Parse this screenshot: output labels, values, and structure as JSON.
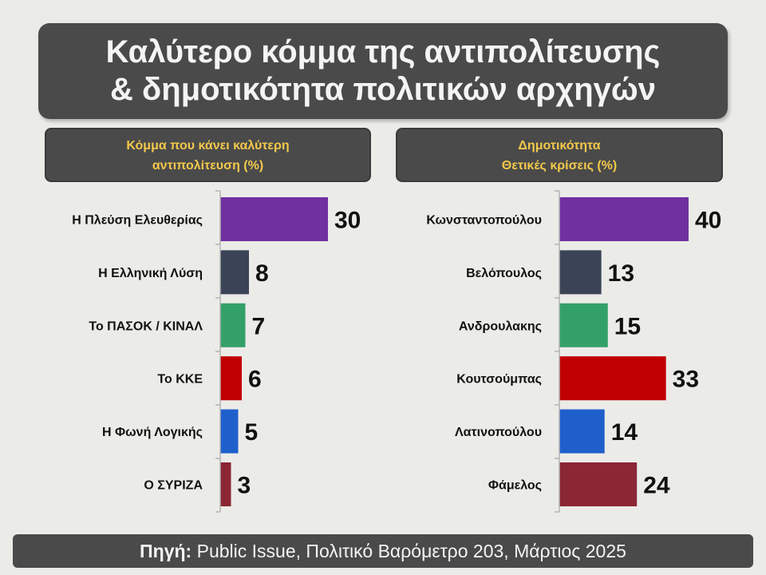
{
  "title": {
    "line1": "Καλύτερο κόμμα της αντιπολίτευσης",
    "line2": "& δημοτικότητα πολιτικών αρχηγών"
  },
  "left_panel": {
    "header_line1": "Κόμμα που κάνει καλύτερη",
    "header_line2": "αντιπολίτευση (%)"
  },
  "right_panel": {
    "header_line1": "Δημοτικότητα",
    "header_line2": "Θετικές κρίσεις (%)"
  },
  "footer": {
    "label": "Πηγή:",
    "text": " Public Issue, Πολιτικό Βαρόμετρο 203, Μάρτιος 2025"
  },
  "chart_data": [
    {
      "type": "bar",
      "orientation": "horizontal",
      "title": "Κόμμα που κάνει καλύτερη αντιπολίτευση (%)",
      "categories": [
        "Η Πλεύση Ελευθερίας",
        "Η Ελληνική Λύση",
        "Το ΠΑΣΟΚ / ΚΙΝΑΛ",
        "Το ΚΚΕ",
        "Η Φωνή Λογικής",
        "Ο ΣΥΡΙΖΑ"
      ],
      "values": [
        30,
        8,
        7,
        6,
        5,
        3
      ],
      "colors": [
        "#7030a0",
        "#3b4357",
        "#33a06a",
        "#c00000",
        "#1f5fcc",
        "#8b2635"
      ],
      "data_labels": true,
      "grid": false
    },
    {
      "type": "bar",
      "orientation": "horizontal",
      "title": "Δημοτικότητα Θετικές κρίσεις (%)",
      "categories": [
        "Κωνσταντοπούλου",
        "Βελόπουλος",
        "Ανδρουλακης",
        "Κουτσούμπας",
        "Λατινοπούλου",
        "Φάμελος"
      ],
      "values": [
        40,
        13,
        15,
        33,
        14,
        24
      ],
      "colors": [
        "#7030a0",
        "#3b4357",
        "#33a06a",
        "#c00000",
        "#1f5fcc",
        "#8b2635"
      ],
      "data_labels": true,
      "grid": false
    }
  ]
}
